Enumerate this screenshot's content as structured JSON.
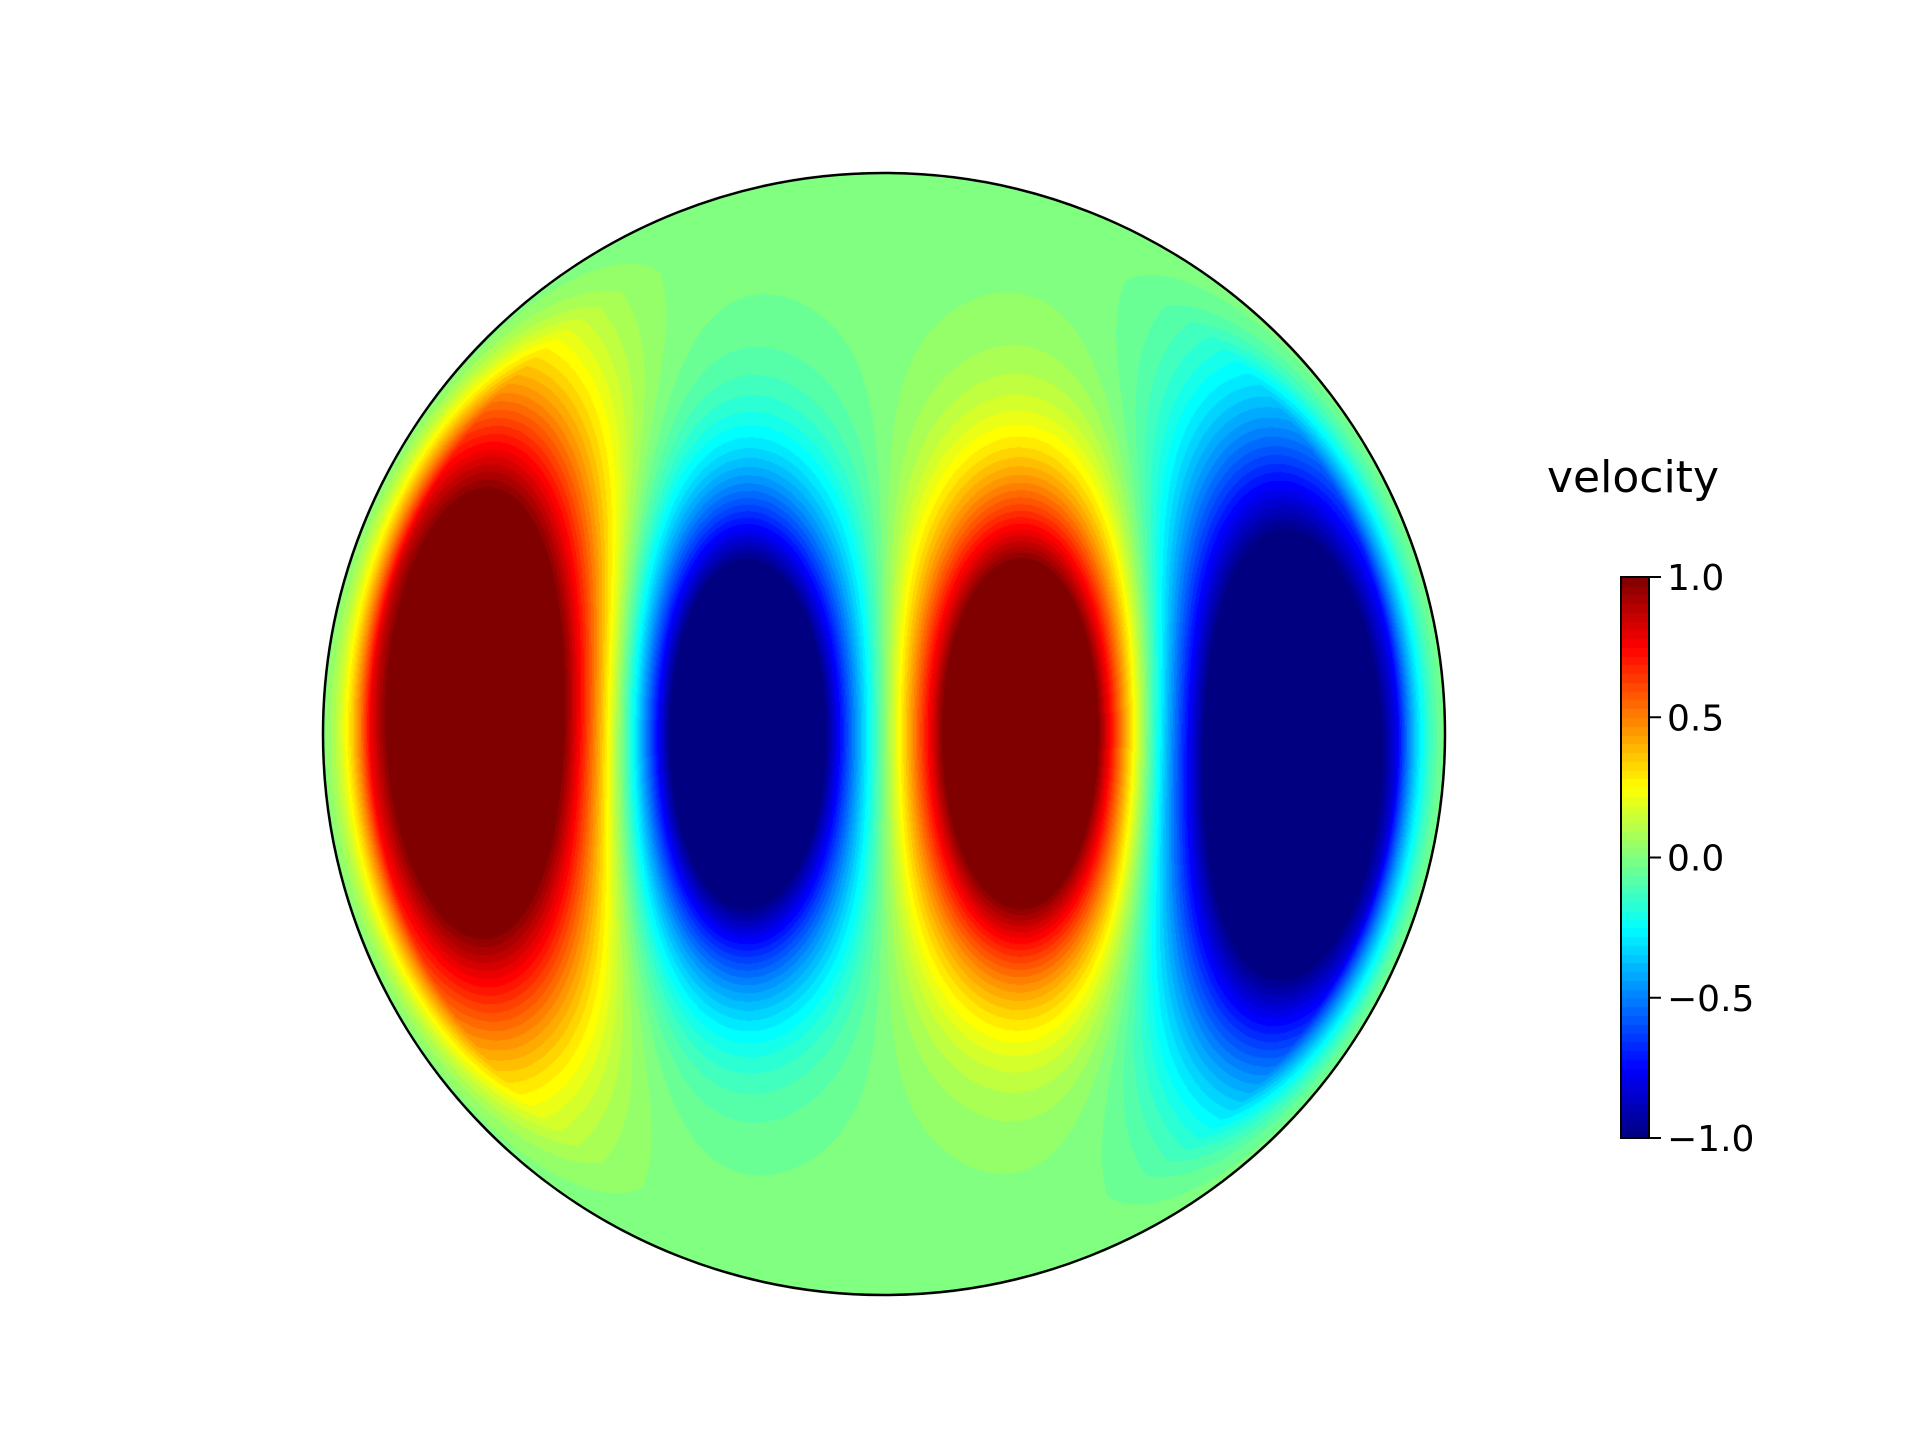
{
  "chart_data": {
    "type": "heatmap",
    "projection": "disk",
    "title": "",
    "xlabel": "",
    "ylabel": "",
    "colormap": "jet",
    "colorbar": {
      "label": "velocity",
      "range": [
        -1.0,
        1.0
      ],
      "ticks": [
        {
          "value": 1.0,
          "label": "1.0"
        },
        {
          "value": 0.5,
          "label": "0.5"
        },
        {
          "value": 0.0,
          "label": "0.0"
        },
        {
          "value": -0.5,
          "label": "−0.5"
        },
        {
          "value": -1.0,
          "label": "−1.0"
        }
      ]
    },
    "field": {
      "description_of_values": "maxima and minima of the velocity field on the unit disk (x,y in disk radii)",
      "extrema": [
        {
          "kind": "max",
          "x": -0.75,
          "y": 0.05,
          "value": 1.0
        },
        {
          "kind": "min",
          "x": -0.25,
          "y": 0.0,
          "value": -1.0
        },
        {
          "kind": "max",
          "x": 0.25,
          "y": 0.0,
          "value": 1.0
        },
        {
          "kind": "min",
          "x": 0.75,
          "y": -0.05,
          "value": -1.0
        }
      ],
      "zero_lines": [
        "x = 0",
        "boundary r = 1"
      ]
    },
    "grid": false,
    "legend": "none"
  }
}
